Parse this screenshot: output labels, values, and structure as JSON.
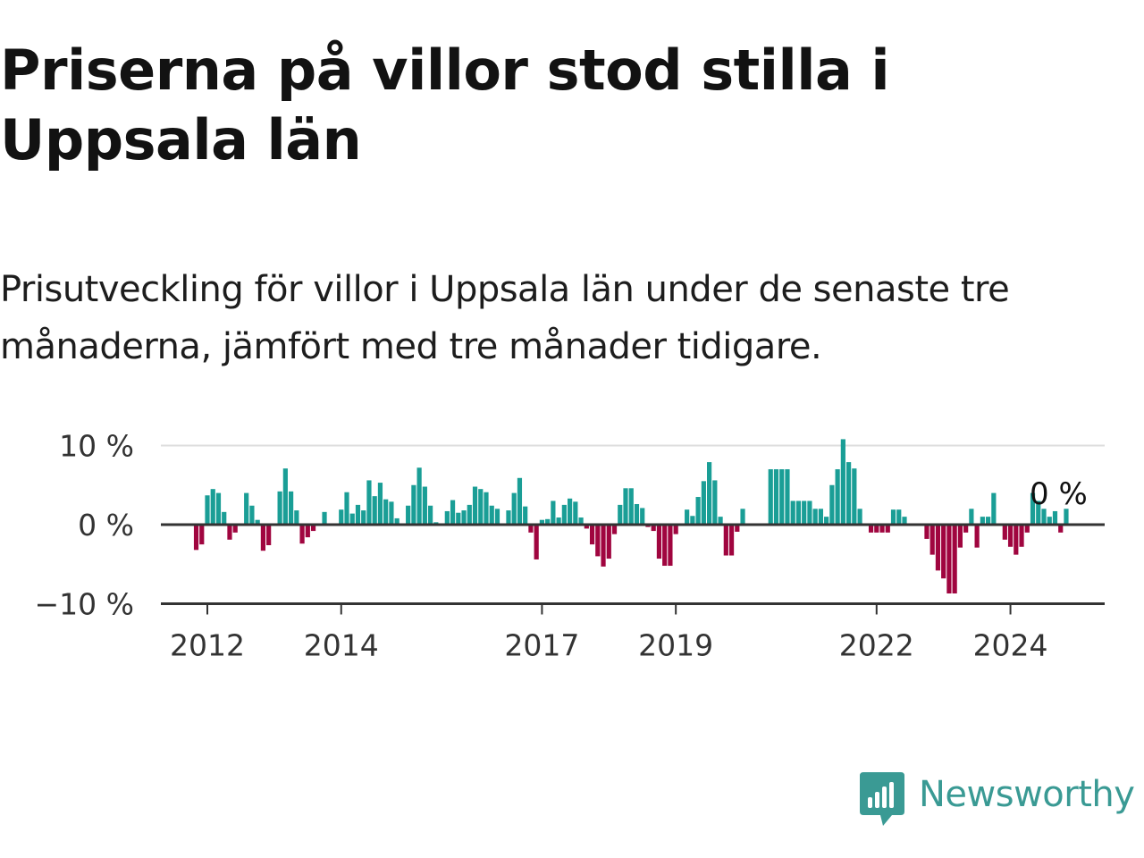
{
  "title": "Priserna på villor stod stilla i Uppsala län",
  "subtitle": "Prisutveckling för villor i Uppsala län under de senaste tre månaderna, jämfört med tre månader tidigare.",
  "colors": {
    "positive": "#1a9e96",
    "negative": "#a0053f",
    "grid": "#dddddd",
    "axis": "#333333",
    "brand": "#3a9a94"
  },
  "brand": {
    "name": "Newsworthy",
    "icon": "bar-chart-speech-bubble-icon"
  },
  "chart_data": {
    "type": "bar",
    "x_start": "2011-11",
    "x_interval": "month",
    "ylim": [
      -10,
      10
    ],
    "y_ticks": [
      {
        "value": 10,
        "label": "10 %"
      },
      {
        "value": 0,
        "label": "0 %"
      },
      {
        "value": -10,
        "label": "−10 %"
      }
    ],
    "x_ticks": [
      {
        "year": 2012,
        "label": "2012"
      },
      {
        "year": 2014,
        "label": "2014"
      },
      {
        "year": 2017,
        "label": "2017"
      },
      {
        "year": 2019,
        "label": "2019"
      },
      {
        "year": 2022,
        "label": "2022"
      },
      {
        "year": 2024,
        "label": "2024"
      }
    ],
    "last_value_label": "0 %",
    "values": [
      -3.2,
      -2.5,
      3.7,
      4.5,
      4.0,
      1.6,
      -1.9,
      -1.0,
      0.0,
      4.0,
      2.4,
      0.6,
      -3.3,
      -2.6,
      0.0,
      4.2,
      7.1,
      4.2,
      1.8,
      -2.4,
      -1.6,
      -0.8,
      0.0,
      1.6,
      0.0,
      0.0,
      1.9,
      4.1,
      1.4,
      2.5,
      1.8,
      5.6,
      3.6,
      5.3,
      3.2,
      2.9,
      0.8,
      0.0,
      2.4,
      5.0,
      7.2,
      4.8,
      2.4,
      0.3,
      0.0,
      1.7,
      3.1,
      1.5,
      1.8,
      2.5,
      4.8,
      4.5,
      4.1,
      2.4,
      2.0,
      0.0,
      1.8,
      4.0,
      5.9,
      2.3,
      -1.0,
      -4.4,
      0.6,
      0.7,
      3.0,
      0.9,
      2.5,
      3.3,
      2.9,
      0.9,
      -0.5,
      -2.5,
      -4.0,
      -5.3,
      -4.3,
      -1.2,
      2.5,
      4.6,
      4.6,
      2.6,
      2.1,
      -0.3,
      -0.8,
      -4.3,
      -5.2,
      -5.2,
      -1.2,
      0.0,
      1.9,
      1.1,
      3.5,
      5.5,
      7.9,
      5.6,
      1.0,
      -3.9,
      -3.9,
      -0.9,
      2.0,
      0.0,
      0.0,
      0.0,
      0.0,
      7.0,
      7.0,
      7.0,
      7.0,
      3.0,
      3.0,
      3.0,
      3.0,
      2.0,
      2.0,
      1.0,
      5.0,
      7.0,
      10.8,
      7.9,
      7.1,
      2.0,
      0.0,
      -1.0,
      -1.0,
      -1.0,
      -1.0,
      1.9,
      1.9,
      1.0,
      0.0,
      0.0,
      0.0,
      -1.8,
      -3.8,
      -5.8,
      -6.8,
      -8.7,
      -8.7,
      -2.9,
      -1.0,
      2.0,
      -2.9,
      1.0,
      1.0,
      4.0,
      0.0,
      -1.9,
      -2.8,
      -3.8,
      -2.8,
      -1.0,
      4.0,
      3.0,
      2.0,
      1.0,
      1.7,
      -1.0,
      2.0,
      0.0
    ]
  }
}
